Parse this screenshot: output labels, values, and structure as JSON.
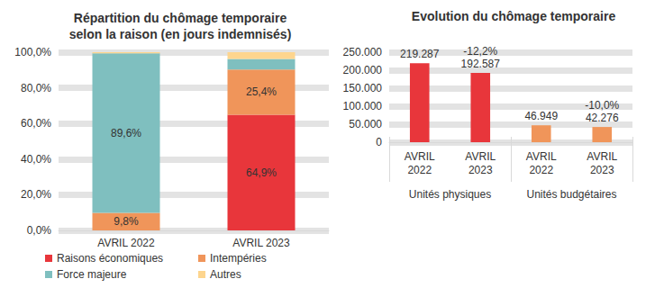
{
  "chart_data": [
    {
      "type": "bar",
      "title": "Répartition du chômage temporaire\nselon la raison (en jours indemnisés)",
      "stacked": true,
      "categories": [
        "AVRIL 2022",
        "AVRIL 2023"
      ],
      "series": [
        {
          "name": "Raisons économiques",
          "color": "#e8363b",
          "values": [
            0,
            64.9
          ],
          "value_labels": [
            null,
            "64,9%"
          ]
        },
        {
          "name": "Intempéries",
          "color": "#f0955a",
          "values": [
            9.8,
            25.4
          ],
          "value_labels": [
            "9,8%",
            "25,4%"
          ]
        },
        {
          "name": "Force majeure",
          "color": "#7fbfbf",
          "values": [
            89.6,
            5.9
          ],
          "value_labels": [
            "89,6%",
            null
          ]
        },
        {
          "name": "Autres",
          "color": "#fdd58e",
          "values": [
            0.6,
            3.8
          ],
          "value_labels": [
            null,
            null
          ]
        }
      ],
      "ylim": [
        0,
        100
      ],
      "yticks": [
        {
          "value": 0,
          "label": "0,0%"
        },
        {
          "value": 20,
          "label": "20,0%"
        },
        {
          "value": 40,
          "label": "40,0%"
        },
        {
          "value": 60,
          "label": "60,0%"
        },
        {
          "value": 80,
          "label": "80,0%"
        },
        {
          "value": 100,
          "label": "100,0%"
        }
      ],
      "grid": true,
      "legend": "bottom",
      "data_labels": true
    },
    {
      "type": "bar",
      "title": "Evolution du chômage temporaire",
      "categories": [
        "AVRIL 2022",
        "AVRIL 2023",
        "AVRIL 2022",
        "AVRIL 2023"
      ],
      "groups": [
        "Unités physiques",
        "Unités budgétaires"
      ],
      "values": [
        219287,
        192587,
        46949,
        42276
      ],
      "value_labels": [
        "219.287",
        "192.587",
        "46.949",
        "42.276"
      ],
      "change_labels": [
        null,
        "-12,2%",
        null,
        "-10,0%"
      ],
      "colors": [
        "#e8363b",
        "#e8363b",
        "#f0955a",
        "#f0955a"
      ],
      "ylim": [
        0,
        250000
      ],
      "yticks": [
        0,
        {
          "value": 50000,
          "label": "50.000"
        },
        {
          "value": 100000,
          "label": "100.000"
        },
        {
          "value": 150000,
          "label": "150.000"
        },
        {
          "value": 200000,
          "label": "200.000"
        },
        {
          "value": 250000,
          "label": "250.000"
        }
      ],
      "grid": true,
      "data_labels": true
    }
  ]
}
